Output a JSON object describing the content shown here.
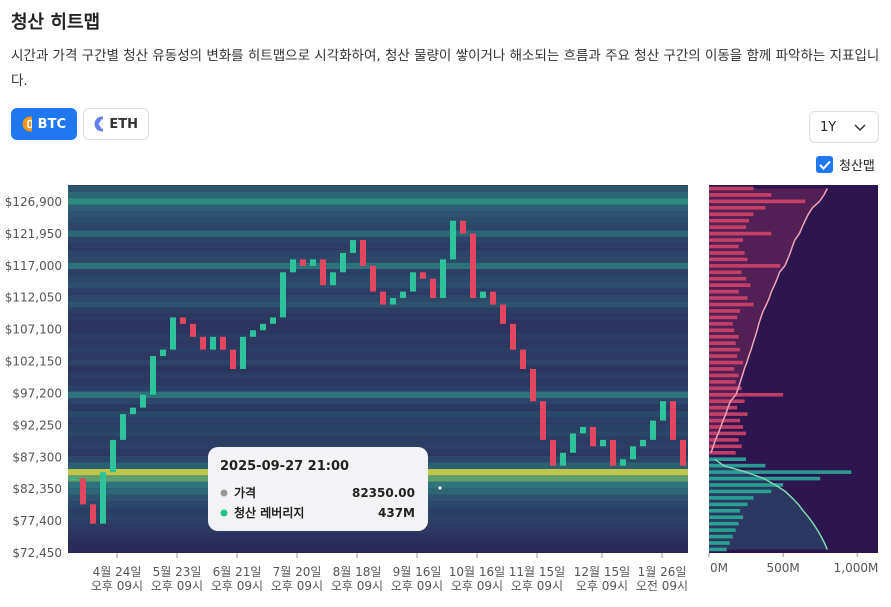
{
  "header": {
    "title": "청산 히트맵",
    "description": "시간과 가격 구간별 청산 유동성의 변화를 히트맵으로 시각화하여, 청산 물량이 쌓이거나 해소되는 흐름과 주요 청산 구간의 이동을 함께 파악하는 지표입니다."
  },
  "controls": {
    "assets": [
      "BTC",
      "ETH"
    ],
    "period": "1Y",
    "overlay_label": "청산맵"
  },
  "chart_data": {
    "type": "heatmap",
    "price": {
      "up_color": "#2ec39a",
      "down_color": "#e2475f",
      "values": [
        84000,
        80000,
        77000,
        85000,
        90000,
        94000,
        95000,
        97000,
        103000,
        104000,
        109000,
        108000,
        106000,
        104000,
        106000,
        104000,
        101000,
        106000,
        107000,
        108000,
        109000,
        116000,
        118000,
        117000,
        118000,
        114000,
        116000,
        119000,
        121000,
        117000,
        113000,
        111000,
        112000,
        113000,
        116000,
        115000,
        112000,
        118000,
        124000,
        122000,
        112000,
        113000,
        111000,
        108000,
        104000,
        101000,
        96000,
        90000,
        86000,
        88000,
        91000,
        92000,
        89000,
        90000,
        86000,
        87000,
        89000,
        90000,
        93000,
        96000,
        90000,
        86000
      ]
    },
    "xlim": [
      -0.5,
      61.5
    ],
    "xticks": [
      {
        "value": 4.4,
        "label": "4월 24일",
        "time": "오후 09시"
      },
      {
        "value": 10.4,
        "label": "5월 23일",
        "time": "오후 09시"
      },
      {
        "value": 16.4,
        "label": "6월 21일",
        "time": "오후 09시"
      },
      {
        "value": 22.4,
        "label": "7월 20일",
        "time": "오후 09시"
      },
      {
        "value": 28.4,
        "label": "8월 18일",
        "time": "오후 09시"
      },
      {
        "value": 34.4,
        "label": "9월 16일",
        "time": "오후 09시"
      },
      {
        "value": 40.4,
        "label": "10월 16일",
        "time": "오후 09시"
      },
      {
        "value": 46.4,
        "label": "11월 15일",
        "time": "오후 09시"
      },
      {
        "value": 52.9,
        "label": "12월 15일",
        "time": "오후 09시"
      },
      {
        "value": 58.9,
        "label": "1월 26일",
        "time": "오전 09시"
      }
    ],
    "ylim": [
      72450,
      129540
    ],
    "yticks": [
      {
        "value": 72450,
        "label": "$72,450"
      },
      {
        "value": 77400,
        "label": "$77,400"
      },
      {
        "value": 82350,
        "label": "$82,350"
      },
      {
        "value": 87300,
        "label": "$87,300"
      },
      {
        "value": 92250,
        "label": "$92,250"
      },
      {
        "value": 97200,
        "label": "$97,200"
      },
      {
        "value": 102150,
        "label": "$102,150"
      },
      {
        "value": 107100,
        "label": "$107,100"
      },
      {
        "value": 112050,
        "label": "$112,050"
      },
      {
        "value": 117000,
        "label": "$117,000"
      },
      {
        "value": 121950,
        "label": "$121,950"
      },
      {
        "value": 126900,
        "label": "$126,900"
      }
    ],
    "profile": {
      "xlim": [
        0,
        1140
      ],
      "xticks": [
        {
          "value": 0,
          "label": "0M"
        },
        {
          "value": 500,
          "label": "500M"
        },
        {
          "value": 1000,
          "label": "1,000M"
        }
      ],
      "series": [
        {
          "color": "#d9466a",
          "levels": [
            88000,
            89000,
            90000,
            91000,
            92000,
            93000,
            94000,
            95000,
            96000,
            97000,
            98000,
            99000,
            100000,
            101000,
            102000,
            103000,
            104000,
            105000,
            106000,
            107000,
            108000,
            109000,
            110000,
            111000,
            112000,
            113000,
            114000,
            115000,
            116000,
            117000,
            118000,
            119000,
            120000,
            121000,
            122000,
            123000,
            124000,
            125000,
            126000,
            127000,
            128000,
            129000
          ],
          "values": [
            180,
            220,
            200,
            250,
            230,
            210,
            260,
            190,
            240,
            500,
            220,
            180,
            200,
            170,
            230,
            190,
            210,
            180,
            200,
            170,
            160,
            190,
            210,
            300,
            260,
            200,
            280,
            250,
            220,
            480,
            260,
            240,
            200,
            230,
            420,
            250,
            270,
            300,
            380,
            650,
            420,
            300
          ]
        },
        {
          "color": "#2bb39f",
          "levels": [
            73000,
            74000,
            75000,
            76000,
            77000,
            78000,
            79000,
            80000,
            81000,
            82000,
            83000,
            84000,
            85000,
            86000,
            87000
          ],
          "values": [
            120,
            140,
            160,
            180,
            200,
            230,
            210,
            260,
            300,
            420,
            500,
            750,
            960,
            380,
            250
          ]
        }
      ]
    },
    "tooltip": {
      "time": "2025-09-27 21:00",
      "rows": [
        {
          "label": "가격",
          "value": "82350.00"
        },
        {
          "label": "청산 레버리지",
          "value": "437M"
        }
      ]
    }
  }
}
